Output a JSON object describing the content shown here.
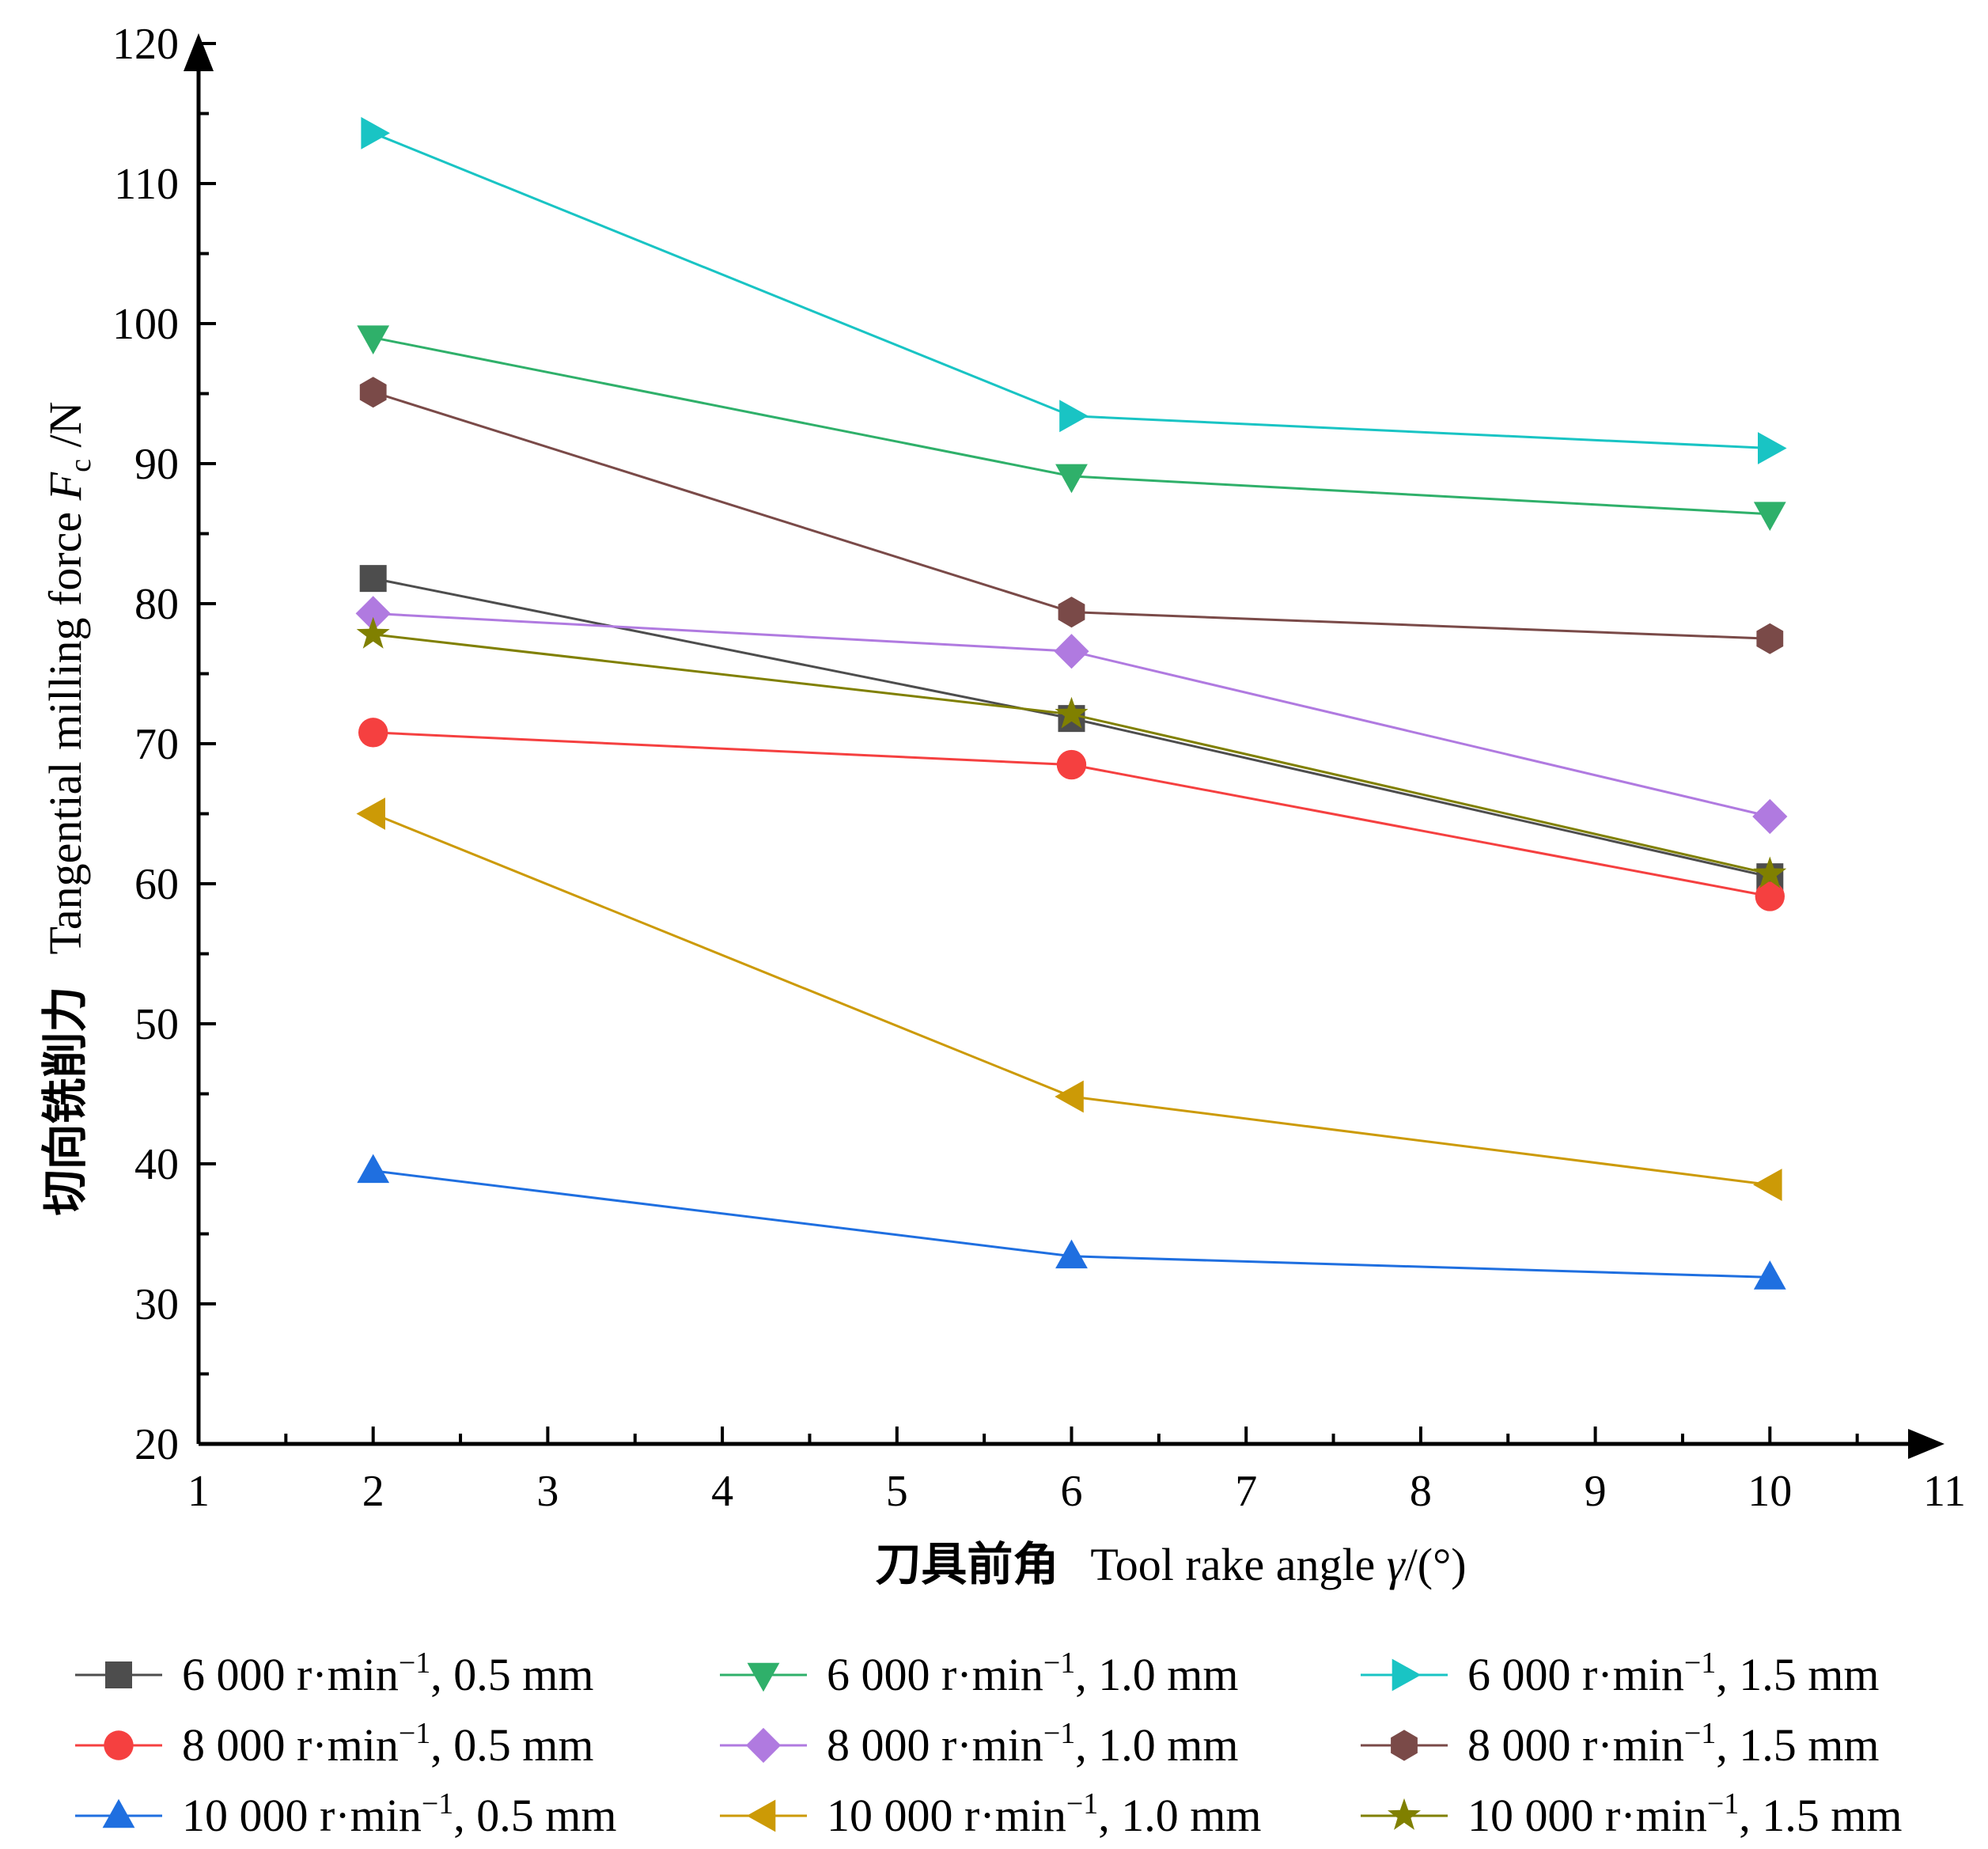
{
  "chart_data": {
    "type": "line",
    "title": "",
    "xlabel_cn": "刀具前角",
    "xlabel_en": "Tool rake angle ",
    "xlabel_symbol": "γ",
    "xlabel_unit": "/(°)",
    "ylabel_cn": "切向铣削力",
    "ylabel_en": "Tangential milling force ",
    "ylabel_symbol": "F",
    "ylabel_sub": "c",
    "ylabel_unit": " /N",
    "xlim": [
      1,
      11
    ],
    "ylim": [
      20,
      120
    ],
    "xticks": [
      "1",
      "2",
      "3",
      "4",
      "5",
      "6",
      "7",
      "8",
      "9",
      "10",
      "11"
    ],
    "yticks": [
      "20",
      "30",
      "40",
      "50",
      "60",
      "70",
      "80",
      "90",
      "100",
      "110",
      "120"
    ],
    "grid": false,
    "legend_position": "bottom",
    "x": [
      2,
      6,
      10
    ],
    "series": [
      {
        "name": "6 000 r·min",
        "sup": "−1",
        "depth": ", 0.5 mm",
        "values": [
          81.8,
          71.8,
          60.5
        ],
        "color": "#4d4d4d",
        "marker": "square"
      },
      {
        "name": "8 000 r·min",
        "sup": "−1",
        "depth": ", 0.5 mm",
        "values": [
          70.8,
          68.5,
          59.1
        ],
        "color": "#f54040",
        "marker": "circle"
      },
      {
        "name": "10 000 r·min",
        "sup": "−1",
        "depth": ", 0.5 mm",
        "values": [
          39.5,
          33.4,
          31.9
        ],
        "color": "#1f6fe0",
        "marker": "triangle-up"
      },
      {
        "name": "6 000 r·min",
        "sup": "−1",
        "depth": ", 1.0 mm",
        "values": [
          99.0,
          89.1,
          86.4
        ],
        "color": "#2fb06a",
        "marker": "triangle-down"
      },
      {
        "name": "8 000 r·min",
        "sup": "−1",
        "depth": ", 1.0 mm",
        "values": [
          79.3,
          76.6,
          64.8
        ],
        "color": "#b07ae0",
        "marker": "diamond"
      },
      {
        "name": "10 000 r·min",
        "sup": "−1",
        "depth": ", 1.0 mm",
        "values": [
          65.0,
          44.8,
          38.5
        ],
        "color": "#cc9a06",
        "marker": "triangle-left"
      },
      {
        "name": "6 000 r·min",
        "sup": "−1",
        "depth": ", 1.5 mm",
        "values": [
          113.6,
          93.4,
          91.1
        ],
        "color": "#19c4c4",
        "marker": "triangle-right"
      },
      {
        "name": "8 000 r·min",
        "sup": "−1",
        "depth": ", 1.5 mm",
        "values": [
          95.1,
          79.4,
          77.5
        ],
        "color": "#7a4a48",
        "marker": "hexagon"
      },
      {
        "name": "10 000 r·min",
        "sup": "−1",
        "depth": ", 1.5 mm",
        "values": [
          77.8,
          72.1,
          60.7
        ],
        "color": "#808000",
        "marker": "star"
      }
    ]
  }
}
